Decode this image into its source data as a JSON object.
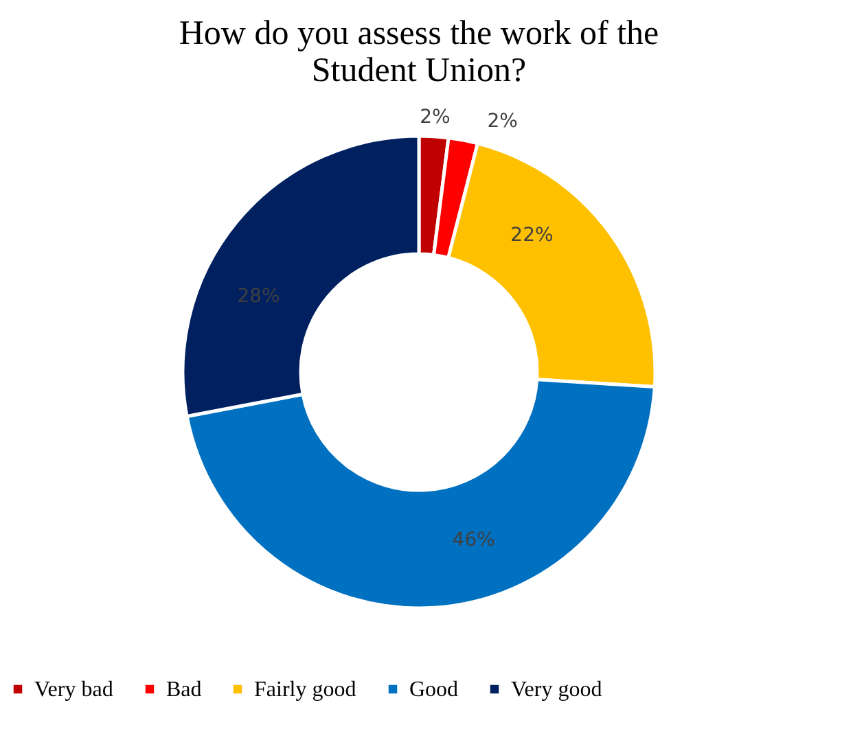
{
  "chart_data": {
    "type": "donut",
    "title": "How do you assess the work of the Student Union?",
    "categories": [
      "Very bad",
      "Bad",
      "Fairly good",
      "Good",
      "Very good"
    ],
    "values": [
      2,
      2,
      22,
      46,
      28
    ],
    "colors": [
      "#c00000",
      "#ff0000",
      "#ffc000",
      "#0070c0",
      "#002060"
    ],
    "value_labels": [
      "2%",
      "2%",
      "22%",
      "46%",
      "28%"
    ],
    "legend": "bottom"
  }
}
